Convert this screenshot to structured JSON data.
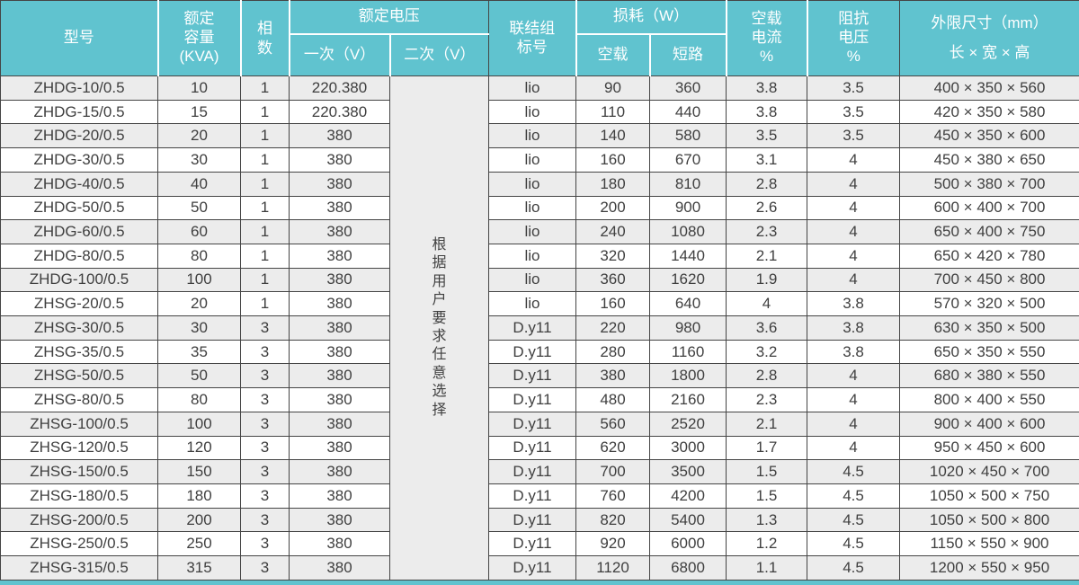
{
  "table": {
    "header": {
      "model": "型号",
      "capacity_lines": [
        "额定",
        "容量",
        "(KVA)"
      ],
      "phases": "相数",
      "voltage_group": "额定电压",
      "primary": "一次（V）",
      "secondary": "二次（V）",
      "connection_lines": [
        "联结组",
        "标号"
      ],
      "loss_group": "损耗（W）",
      "no_load": "空载",
      "short_circuit": "短路",
      "no_load_current_lines": [
        "空载",
        "电流",
        "%"
      ],
      "impedance_lines": [
        "阻抗",
        "电压",
        "%"
      ],
      "dimensions_lines": [
        "外限尺寸（mm）",
        "长 × 宽 × 高"
      ]
    },
    "secondary_note": "根据用户要求任意选择",
    "rows": [
      [
        "ZHDG-10/0.5",
        "10",
        "1",
        "220.380",
        "lio",
        "90",
        "360",
        "3.8",
        "3.5",
        "400 × 350 × 560"
      ],
      [
        "ZHDG-15/0.5",
        "15",
        "1",
        "220.380",
        "lio",
        "110",
        "440",
        "3.8",
        "3.5",
        "420 × 350 × 580"
      ],
      [
        "ZHDG-20/0.5",
        "20",
        "1",
        "380",
        "lio",
        "140",
        "580",
        "3.5",
        "3.5",
        "450 × 350 × 600"
      ],
      [
        "ZHDG-30/0.5",
        "30",
        "1",
        "380",
        "lio",
        "160",
        "670",
        "3.1",
        "4",
        "450 × 380 × 650"
      ],
      [
        "ZHDG-40/0.5",
        "40",
        "1",
        "380",
        "lio",
        "180",
        "810",
        "2.8",
        "4",
        "500 × 380 × 700"
      ],
      [
        "ZHDG-50/0.5",
        "50",
        "1",
        "380",
        "lio",
        "200",
        "900",
        "2.6",
        "4",
        "600 × 400 × 700"
      ],
      [
        "ZHDG-60/0.5",
        "60",
        "1",
        "380",
        "lio",
        "240",
        "1080",
        "2.3",
        "4",
        "650 × 400 × 750"
      ],
      [
        "ZHDG-80/0.5",
        "80",
        "1",
        "380",
        "lio",
        "320",
        "1440",
        "2.1",
        "4",
        "650 × 420 × 780"
      ],
      [
        "ZHDG-100/0.5",
        "100",
        "1",
        "380",
        "lio",
        "360",
        "1620",
        "1.9",
        "4",
        "700 × 450 × 800"
      ],
      [
        "ZHSG-20/0.5",
        "20",
        "1",
        "380",
        "lio",
        "160",
        "640",
        "4",
        "3.8",
        "570 × 320 × 500"
      ],
      [
        "ZHSG-30/0.5",
        "30",
        "3",
        "380",
        "D.y11",
        "220",
        "980",
        "3.6",
        "3.8",
        "630 × 350 × 500"
      ],
      [
        "ZHSG-35/0.5",
        "35",
        "3",
        "380",
        "D.y11",
        "280",
        "1160",
        "3.2",
        "3.8",
        "650 × 350 × 550"
      ],
      [
        "ZHSG-50/0.5",
        "50",
        "3",
        "380",
        "D.y11",
        "380",
        "1800",
        "2.8",
        "4",
        "680 × 380 × 550"
      ],
      [
        "ZHSG-80/0.5",
        "80",
        "3",
        "380",
        "D.y11",
        "480",
        "2160",
        "2.3",
        "4",
        "800 × 400 × 550"
      ],
      [
        "ZHSG-100/0.5",
        "100",
        "3",
        "380",
        "D.y11",
        "560",
        "2520",
        "2.1",
        "4",
        "900 × 400 × 600"
      ],
      [
        "ZHSG-120/0.5",
        "120",
        "3",
        "380",
        "D.y11",
        "620",
        "3000",
        "1.7",
        "4",
        "950 × 450 × 600"
      ],
      [
        "ZHSG-150/0.5",
        "150",
        "3",
        "380",
        "D.y11",
        "700",
        "3500",
        "1.5",
        "4.5",
        "1020 × 450 × 700"
      ],
      [
        "ZHSG-180/0.5",
        "180",
        "3",
        "380",
        "D.y11",
        "760",
        "4200",
        "1.5",
        "4.5",
        "1050 × 500 × 750"
      ],
      [
        "ZHSG-200/0.5",
        "200",
        "3",
        "380",
        "D.y11",
        "820",
        "5400",
        "1.3",
        "4.5",
        "1050 × 500 × 800"
      ],
      [
        "ZHSG-250/0.5",
        "250",
        "3",
        "380",
        "D.y11",
        "920",
        "6000",
        "1.2",
        "4.5",
        "1150 × 550 × 900"
      ],
      [
        "ZHSG-315/0.5",
        "315",
        "3",
        "380",
        "D.y11",
        "1120",
        "6800",
        "1.1",
        "4.5",
        "1200 × 550 × 950"
      ]
    ]
  },
  "colors": {
    "header_bg": "#60c3cf",
    "header_text": "#ffffff",
    "row_alt_bg": "#ececec",
    "border": "#454545",
    "text": "#3f3f3f"
  }
}
